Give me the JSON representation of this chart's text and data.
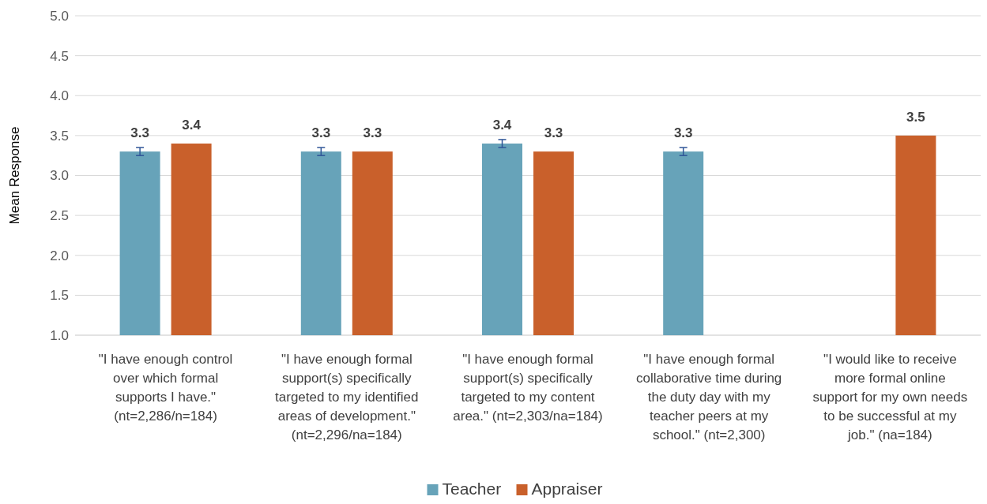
{
  "chart_data": {
    "type": "bar",
    "ylabel": "Mean Response",
    "categories": [
      "\"I have enough control over which formal supports I have.\" (nt=2,286/n=184)",
      "\"I have enough formal support(s) specifically targeted to my identified areas of development.\" (nt=2,296/na=184)",
      "\"I have enough formal support(s) specifically targeted to my content area.\" (nt=2,303/na=184)",
      "\"I have enough formal collaborative time during the duty day with my teacher peers at my school.\" (nt=2,300)",
      "\"I would like to receive more formal online support for my own needs to be successful at my job.\" (na=184)"
    ],
    "series": [
      {
        "name": "Teacher",
        "color": "#67a3b9",
        "values": [
          3.3,
          3.3,
          3.4,
          3.3,
          null
        ],
        "errors": [
          0.05,
          0.05,
          0.05,
          0.05,
          null
        ]
      },
      {
        "name": "Appraiser",
        "color": "#c9602b",
        "values": [
          3.4,
          3.3,
          3.3,
          null,
          3.5
        ]
      }
    ],
    "ylim": [
      1.0,
      5.0
    ],
    "yticks": [
      {
        "value": 1,
        "label": "1.0"
      },
      {
        "value": 1.5,
        "label": "1.5"
      },
      {
        "value": 2,
        "label": "2.0"
      },
      {
        "value": 2.5,
        "label": "2.5"
      },
      {
        "value": 3,
        "label": "3.0"
      },
      {
        "value": 3.5,
        "label": "3.5"
      },
      {
        "value": 4,
        "label": "4.0"
      },
      {
        "value": 4.5,
        "label": "4.5"
      },
      {
        "value": 5,
        "label": "5.0"
      }
    ],
    "grid": "y",
    "legend": "bottom",
    "data_labels": true
  }
}
